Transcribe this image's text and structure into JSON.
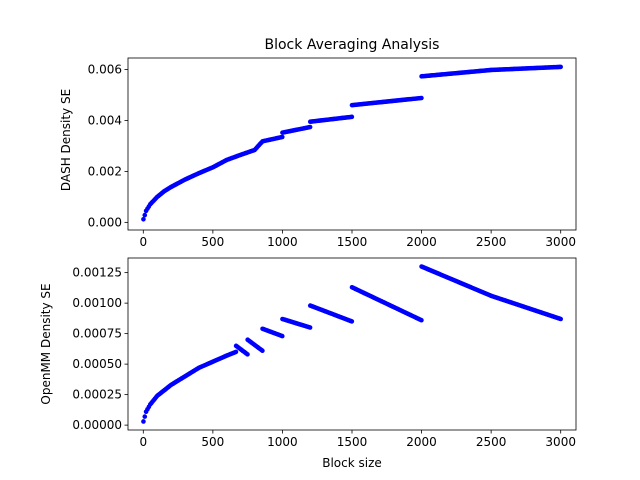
{
  "chart_data": [
    {
      "type": "scatter",
      "title": "Block Averaging Analysis",
      "xlabel": "",
      "ylabel": "DASH Density SE",
      "xlim": [
        -110,
        3110
      ],
      "ylim": [
        -0.0003,
        0.00645
      ],
      "xticks": [
        0,
        500,
        1000,
        1500,
        2000,
        2500,
        3000
      ],
      "xtick_labels": [
        "0",
        "500",
        "1000",
        "1500",
        "2000",
        "2500",
        "3000"
      ],
      "yticks": [
        0,
        0.002,
        0.004,
        0.006
      ],
      "ytick_labels": [
        "0.000",
        "0.002",
        "0.004",
        "0.006"
      ],
      "grid": false,
      "marker_color": "#0000ff",
      "series": [
        {
          "x": [
            1,
            20,
            50,
            100,
            150,
            200,
            300,
            400,
            500,
            600,
            700,
            800,
            857,
            999,
            1000,
            1199,
            1200,
            1499,
            1500,
            1999,
            2000,
            2500,
            3000
          ],
          "y": [
            0.00012,
            0.00045,
            0.00071,
            0.001,
            0.00122,
            0.00139,
            0.00168,
            0.00193,
            0.00216,
            0.00245,
            0.00265,
            0.00284,
            0.00318,
            0.00335,
            0.00352,
            0.00374,
            0.00395,
            0.00414,
            0.0046,
            0.00488,
            0.00573,
            0.00598,
            0.0061
          ]
        }
      ]
    },
    {
      "type": "scatter",
      "title": "",
      "xlabel": "Block size",
      "ylabel": "OpenMM Density SE",
      "xlim": [
        -110,
        3110
      ],
      "ylim": [
        -4e-05,
        0.00137
      ],
      "xticks": [
        0,
        500,
        1000,
        1500,
        2000,
        2500,
        3000
      ],
      "xtick_labels": [
        "0",
        "500",
        "1000",
        "1500",
        "2000",
        "2500",
        "3000"
      ],
      "yticks": [
        0,
        0.00025,
        0.0005,
        0.00075,
        0.001,
        0.00125
      ],
      "ytick_labels": [
        "0.00000",
        "0.00025",
        "0.00050",
        "0.00075",
        "0.00100",
        "0.00125"
      ],
      "grid": false,
      "marker_color": "#0000ff",
      "series": [
        {
          "x": [
            1,
            20,
            50,
            100,
            200,
            300,
            400,
            500,
            600,
            666,
            667,
            749,
            750,
            856,
            857,
            999,
            1000,
            1199,
            1200,
            1499,
            1500,
            1999,
            2000,
            2500,
            3000
          ],
          "y": [
            3e-05,
            0.00011,
            0.00017,
            0.00024,
            0.00033,
            0.0004,
            0.00047,
            0.00052,
            0.00057,
            0.0006,
            0.00065,
            0.00058,
            0.0007,
            0.00061,
            0.00079,
            0.00073,
            0.00087,
            0.0008,
            0.00098,
            0.00085,
            0.00113,
            0.00086,
            0.0013,
            0.00106,
            0.00087
          ]
        }
      ]
    }
  ]
}
